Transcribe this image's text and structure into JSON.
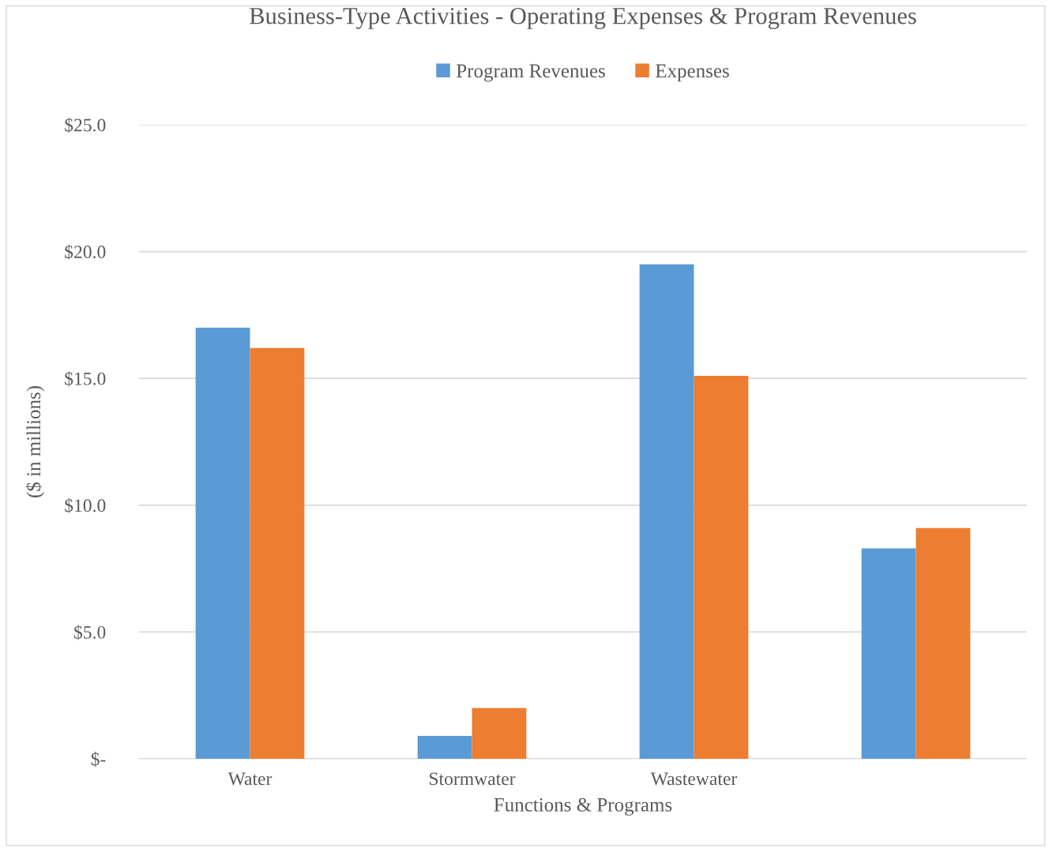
{
  "chart_data": {
    "type": "bar",
    "title": "Business-Type Activities - Operating Expenses & Program Revenues",
    "xlabel": "Functions & Programs",
    "ylabel": "($ in millions)",
    "categories": [
      "Water",
      "Stormwater",
      "Wastewater",
      null
    ],
    "series": [
      {
        "name": "Program Revenues",
        "color": "#5b9bd5",
        "values": [
          17.0,
          0.9,
          19.5,
          8.3
        ]
      },
      {
        "name": "Expenses",
        "color": "#ed7d31",
        "values": [
          16.2,
          2.0,
          15.1,
          9.1
        ]
      }
    ],
    "ylim": [
      0,
      25
    ],
    "yticks": [
      {
        "value": 0,
        "label": "$-"
      },
      {
        "value": 5,
        "label": "$5.0"
      },
      {
        "value": 10,
        "label": "$10.0"
      },
      {
        "value": 15,
        "label": "$15.0"
      },
      {
        "value": 20,
        "label": "$20.0"
      },
      {
        "value": 25,
        "label": "$25.0"
      }
    ],
    "grid": "y",
    "legend": "top"
  }
}
